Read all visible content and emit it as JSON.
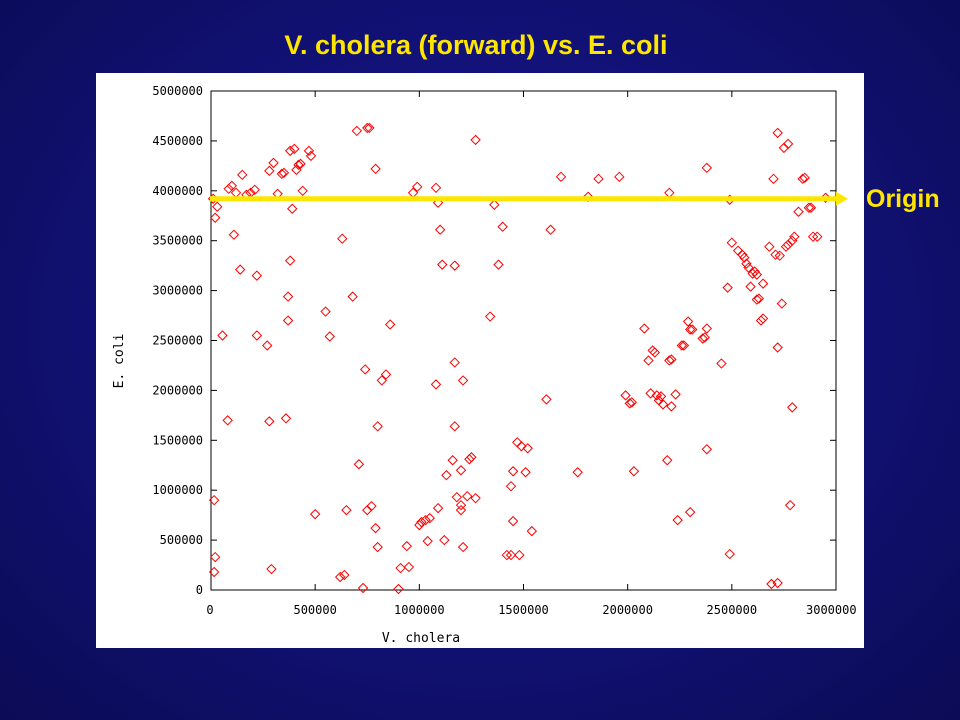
{
  "slide": {
    "title": "V. cholera (forward) vs. E. coli",
    "origin_label": "Origin"
  },
  "colors": {
    "background": "#12127a",
    "title": "#ffe600",
    "marker": "#ff0000",
    "origin_line": "#ffe600"
  },
  "chart_data": {
    "type": "scatter",
    "title": "V. cholera (forward) vs. E. coli",
    "xlabel": "V. cholera",
    "ylabel": "E. coli",
    "xlim": [
      0,
      3000000
    ],
    "ylim": [
      0,
      5000000
    ],
    "x_ticks": [
      "0",
      "500000",
      "1000000",
      "1500000",
      "2000000",
      "2500000",
      "3000000"
    ],
    "y_ticks": [
      "0",
      "500000",
      "1000000",
      "1500000",
      "2000000",
      "2500000",
      "3000000",
      "3500000",
      "4000000",
      "4500000",
      "5000000"
    ],
    "marker": "diamond",
    "grid": false,
    "origin_y": 3920000,
    "series": [
      {
        "points": [
          [
            10000,
            3920000
          ],
          [
            20000,
            3730000
          ],
          [
            30000,
            3840000
          ],
          [
            15000,
            900000
          ],
          [
            20000,
            330000
          ],
          [
            15000,
            180000
          ],
          [
            55000,
            2550000
          ],
          [
            80000,
            1700000
          ],
          [
            85000,
            4020000
          ],
          [
            100000,
            4050000
          ],
          [
            110000,
            3560000
          ],
          [
            120000,
            3980000
          ],
          [
            140000,
            3210000
          ],
          [
            150000,
            4160000
          ],
          [
            170000,
            3960000
          ],
          [
            190000,
            3980000
          ],
          [
            210000,
            4010000
          ],
          [
            220000,
            3150000
          ],
          [
            220000,
            2550000
          ],
          [
            270000,
            2450000
          ],
          [
            280000,
            1690000
          ],
          [
            280000,
            4200000
          ],
          [
            290000,
            210000
          ],
          [
            300000,
            4280000
          ],
          [
            320000,
            3970000
          ],
          [
            340000,
            4170000
          ],
          [
            350000,
            4180000
          ],
          [
            360000,
            1720000
          ],
          [
            370000,
            2700000
          ],
          [
            380000,
            4400000
          ],
          [
            370000,
            2940000
          ],
          [
            380000,
            3300000
          ],
          [
            390000,
            3820000
          ],
          [
            400000,
            4420000
          ],
          [
            410000,
            4210000
          ],
          [
            420000,
            4260000
          ],
          [
            430000,
            4270000
          ],
          [
            440000,
            4000000
          ],
          [
            470000,
            4400000
          ],
          [
            480000,
            4350000
          ],
          [
            500000,
            760000
          ],
          [
            550000,
            2790000
          ],
          [
            570000,
            2540000
          ],
          [
            630000,
            3520000
          ],
          [
            640000,
            150000
          ],
          [
            620000,
            130000
          ],
          [
            650000,
            800000
          ],
          [
            680000,
            2940000
          ],
          [
            700000,
            4600000
          ],
          [
            710000,
            1260000
          ],
          [
            730000,
            20000
          ],
          [
            740000,
            2210000
          ],
          [
            750000,
            4630000
          ],
          [
            760000,
            4630000
          ],
          [
            750000,
            800000
          ],
          [
            770000,
            840000
          ],
          [
            790000,
            4220000
          ],
          [
            790000,
            620000
          ],
          [
            800000,
            1640000
          ],
          [
            800000,
            430000
          ],
          [
            820000,
            2100000
          ],
          [
            840000,
            2160000
          ],
          [
            860000,
            2660000
          ],
          [
            900000,
            10000
          ],
          [
            910000,
            220000
          ],
          [
            940000,
            440000
          ],
          [
            950000,
            230000
          ],
          [
            970000,
            3980000
          ],
          [
            990000,
            4040000
          ],
          [
            1000000,
            650000
          ],
          [
            1010000,
            680000
          ],
          [
            1030000,
            700000
          ],
          [
            1050000,
            720000
          ],
          [
            1040000,
            490000
          ],
          [
            1080000,
            4030000
          ],
          [
            1090000,
            3880000
          ],
          [
            1080000,
            2060000
          ],
          [
            1100000,
            3610000
          ],
          [
            1090000,
            820000
          ],
          [
            1110000,
            3260000
          ],
          [
            1120000,
            500000
          ],
          [
            1130000,
            1150000
          ],
          [
            1160000,
            1300000
          ],
          [
            1170000,
            3250000
          ],
          [
            1170000,
            2280000
          ],
          [
            1170000,
            1640000
          ],
          [
            1180000,
            930000
          ],
          [
            1200000,
            800000
          ],
          [
            1200000,
            850000
          ],
          [
            1200000,
            1200000
          ],
          [
            1210000,
            430000
          ],
          [
            1210000,
            2100000
          ],
          [
            1230000,
            940000
          ],
          [
            1240000,
            1310000
          ],
          [
            1250000,
            1330000
          ],
          [
            1270000,
            4510000
          ],
          [
            1270000,
            920000
          ],
          [
            1340000,
            2740000
          ],
          [
            1360000,
            3860000
          ],
          [
            1380000,
            3260000
          ],
          [
            1400000,
            3640000
          ],
          [
            1420000,
            350000
          ],
          [
            1440000,
            350000
          ],
          [
            1440000,
            1040000
          ],
          [
            1450000,
            1190000
          ],
          [
            1450000,
            690000
          ],
          [
            1470000,
            1480000
          ],
          [
            1480000,
            350000
          ],
          [
            1490000,
            1440000
          ],
          [
            1510000,
            1180000
          ],
          [
            1520000,
            1420000
          ],
          [
            1540000,
            590000
          ],
          [
            1610000,
            1910000
          ],
          [
            1630000,
            3610000
          ],
          [
            1680000,
            4140000
          ],
          [
            1760000,
            1180000
          ],
          [
            1810000,
            3940000
          ],
          [
            1860000,
            4120000
          ],
          [
            1960000,
            4140000
          ],
          [
            1990000,
            1950000
          ],
          [
            2010000,
            1870000
          ],
          [
            2020000,
            1880000
          ],
          [
            2030000,
            1190000
          ],
          [
            2080000,
            2620000
          ],
          [
            2100000,
            2300000
          ],
          [
            2110000,
            1970000
          ],
          [
            2120000,
            2400000
          ],
          [
            2130000,
            2380000
          ],
          [
            2140000,
            1950000
          ],
          [
            2150000,
            1900000
          ],
          [
            2160000,
            1940000
          ],
          [
            2170000,
            1860000
          ],
          [
            2190000,
            1300000
          ],
          [
            2200000,
            2300000
          ],
          [
            2200000,
            3980000
          ],
          [
            2210000,
            2310000
          ],
          [
            2210000,
            1840000
          ],
          [
            2230000,
            1960000
          ],
          [
            2240000,
            700000
          ],
          [
            2260000,
            2450000
          ],
          [
            2270000,
            2450000
          ],
          [
            2290000,
            2690000
          ],
          [
            2300000,
            2610000
          ],
          [
            2300000,
            780000
          ],
          [
            2310000,
            2610000
          ],
          [
            2360000,
            2520000
          ],
          [
            2370000,
            2530000
          ],
          [
            2380000,
            2620000
          ],
          [
            2380000,
            1410000
          ],
          [
            2380000,
            4230000
          ],
          [
            2450000,
            2270000
          ],
          [
            2480000,
            3030000
          ],
          [
            2490000,
            360000
          ],
          [
            2490000,
            3910000
          ],
          [
            2500000,
            3480000
          ],
          [
            2530000,
            3400000
          ],
          [
            2550000,
            3360000
          ],
          [
            2560000,
            3330000
          ],
          [
            2570000,
            3270000
          ],
          [
            2580000,
            3230000
          ],
          [
            2590000,
            3040000
          ],
          [
            2600000,
            3170000
          ],
          [
            2610000,
            3190000
          ],
          [
            2620000,
            3160000
          ],
          [
            2620000,
            2910000
          ],
          [
            2630000,
            2920000
          ],
          [
            2640000,
            2700000
          ],
          [
            2650000,
            2720000
          ],
          [
            2650000,
            3070000
          ],
          [
            2680000,
            3440000
          ],
          [
            2690000,
            60000
          ],
          [
            2700000,
            4120000
          ],
          [
            2710000,
            3360000
          ],
          [
            2720000,
            2430000
          ],
          [
            2720000,
            4580000
          ],
          [
            2720000,
            70000
          ],
          [
            2730000,
            3350000
          ],
          [
            2740000,
            2870000
          ],
          [
            2750000,
            4430000
          ],
          [
            2760000,
            3440000
          ],
          [
            2770000,
            3460000
          ],
          [
            2770000,
            4470000
          ],
          [
            2780000,
            850000
          ],
          [
            2790000,
            1830000
          ],
          [
            2790000,
            3500000
          ],
          [
            2800000,
            3540000
          ],
          [
            2820000,
            3790000
          ],
          [
            2840000,
            4120000
          ],
          [
            2850000,
            4130000
          ],
          [
            2870000,
            3830000
          ],
          [
            2880000,
            3830000
          ],
          [
            2890000,
            3540000
          ],
          [
            2910000,
            3540000
          ],
          [
            2950000,
            3930000
          ]
        ]
      }
    ]
  }
}
